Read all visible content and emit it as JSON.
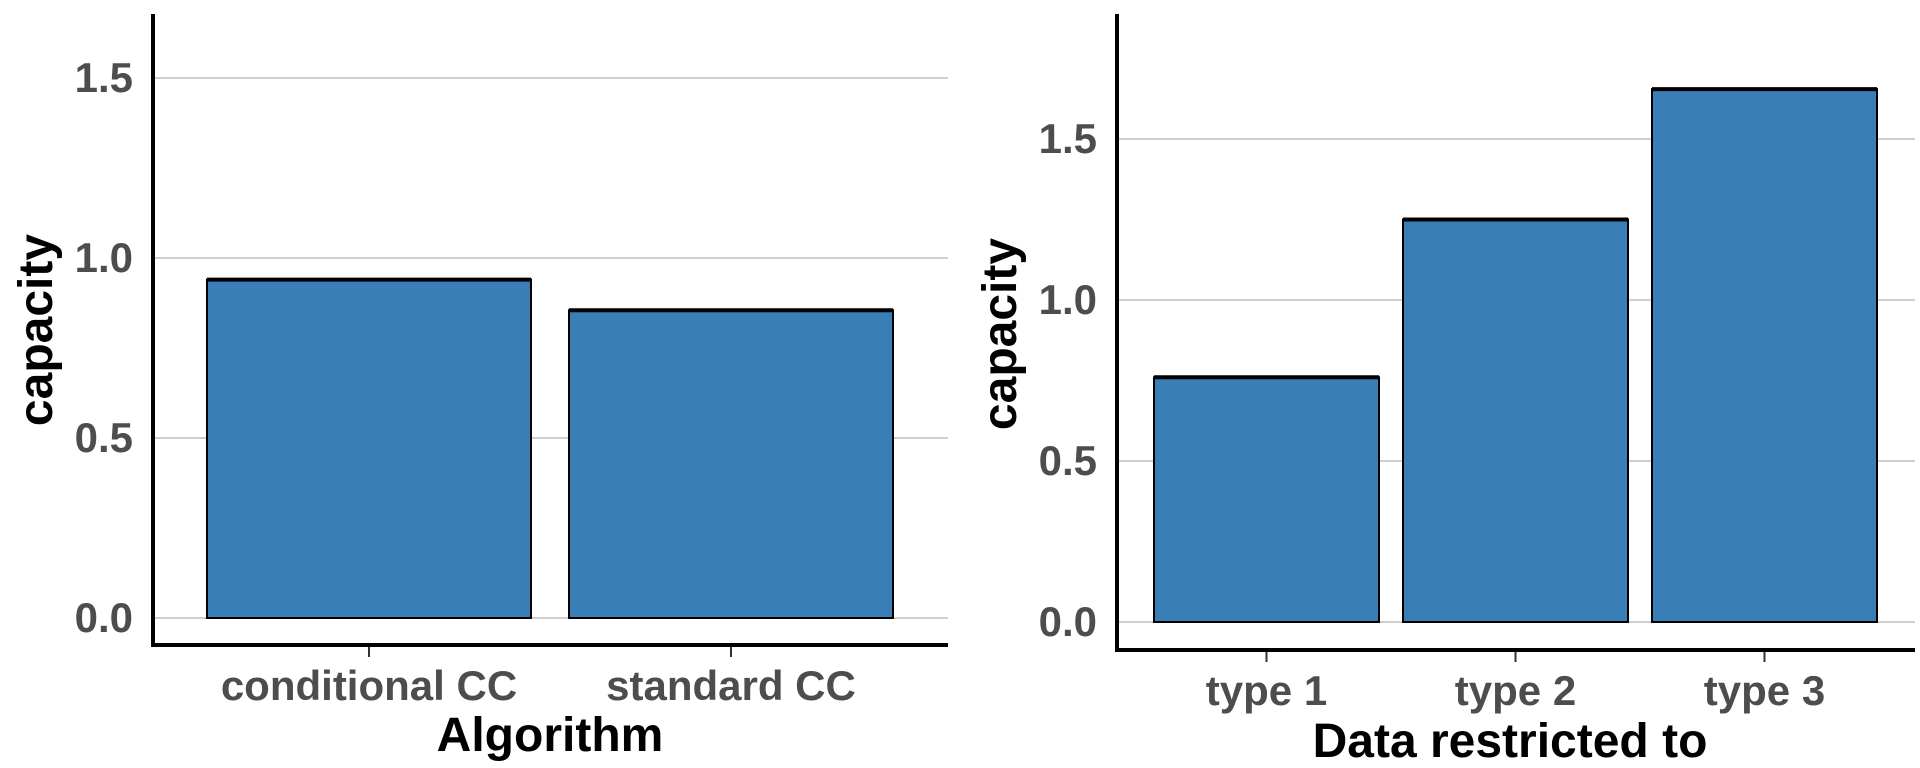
{
  "chart_data": [
    {
      "type": "bar",
      "categories": [
        "conditional CC",
        "standard CC"
      ],
      "values": [
        0.94,
        0.855
      ],
      "title": "",
      "xlabel": "Algorithm",
      "ylabel": "capacity",
      "ylim": [
        0,
        1.68
      ],
      "yticks": [
        0.0,
        0.5,
        1.0,
        1.5
      ],
      "ytick_labels": [
        "0.0",
        "0.5",
        "1.0",
        "1.5"
      ],
      "grid": "horizontal",
      "bar_color": "#3a7eb8"
    },
    {
      "type": "bar",
      "categories": [
        "type 1",
        "type 2",
        "type 3"
      ],
      "values": [
        0.76,
        1.25,
        1.655
      ],
      "title": "",
      "xlabel": "Data restricted to",
      "ylabel": "capacity",
      "ylim": [
        0,
        1.88
      ],
      "yticks": [
        0.0,
        0.5,
        1.0,
        1.5
      ],
      "ytick_labels": [
        "0.0",
        "0.5",
        "1.0",
        "1.5"
      ],
      "grid": "horizontal",
      "bar_color": "#3a7eb8"
    }
  ]
}
